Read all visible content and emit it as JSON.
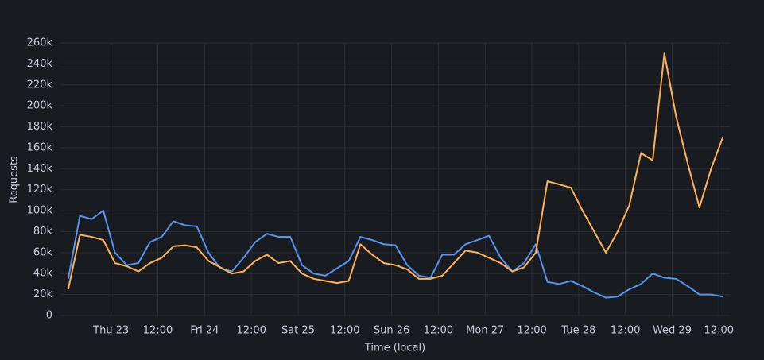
{
  "chart_data": {
    "type": "line",
    "y_label": "Requests",
    "x_label": "Time (local)",
    "x": [
      -11,
      -8,
      -5,
      -2,
      1,
      4,
      7,
      10,
      13,
      16,
      19,
      22,
      25,
      28,
      31,
      34,
      37,
      40,
      43,
      46,
      49,
      52,
      55,
      58,
      61,
      64,
      67,
      70,
      73,
      76,
      79,
      82,
      85,
      88,
      91,
      94,
      97,
      100,
      103,
      106,
      109,
      112,
      115,
      118,
      121,
      124,
      127,
      130,
      133,
      136,
      139,
      142,
      145,
      148,
      151,
      154,
      157
    ],
    "series": [
      {
        "color": "#5794f2",
        "values": [
          35000,
          95000,
          92000,
          100000,
          60000,
          48000,
          50000,
          70000,
          75000,
          90000,
          86000,
          85000,
          60000,
          45000,
          42000,
          55000,
          70000,
          78000,
          75000,
          75000,
          48000,
          40000,
          38000,
          45000,
          52000,
          75000,
          72000,
          68000,
          67000,
          48000,
          38000,
          36000,
          58000,
          58000,
          68000,
          72000,
          76000,
          55000,
          42000,
          50000,
          68000,
          32000,
          30000,
          33000,
          28000,
          22000,
          17000,
          18000,
          25000,
          30000,
          40000,
          36000,
          35000,
          28000,
          20000,
          20000,
          18000
        ]
      },
      {
        "color": "#ffb357",
        "values": [
          25000,
          77000,
          75000,
          72000,
          50000,
          47000,
          42000,
          50000,
          55000,
          66000,
          67000,
          65000,
          52000,
          46000,
          40000,
          42000,
          52000,
          58000,
          50000,
          52000,
          40000,
          35000,
          33000,
          31000,
          33000,
          68000,
          58000,
          50000,
          48000,
          44000,
          35000,
          35000,
          38000,
          50000,
          62000,
          60000,
          55000,
          50000,
          42000,
          46000,
          60000,
          128000,
          125000,
          122000,
          100000,
          80000,
          60000,
          80000,
          105000,
          155000,
          148000,
          250000,
          190000,
          145000,
          103000,
          140000,
          170000
        ]
      }
    ],
    "xlim": [
      -13,
      159
    ],
    "xticks": [
      {
        "value": 0,
        "label": "Thu 23"
      },
      {
        "value": 12,
        "label": "12:00"
      },
      {
        "value": 24,
        "label": "Fri 24"
      },
      {
        "value": 36,
        "label": "12:00"
      },
      {
        "value": 48,
        "label": "Sat 25"
      },
      {
        "value": 60,
        "label": "12:00"
      },
      {
        "value": 72,
        "label": "Sun 26"
      },
      {
        "value": 84,
        "label": "12:00"
      },
      {
        "value": 96,
        "label": "Mon 27"
      },
      {
        "value": 108,
        "label": "12:00"
      },
      {
        "value": 120,
        "label": "Tue 28"
      },
      {
        "value": 132,
        "label": "12:00"
      },
      {
        "value": 144,
        "label": "Wed 29"
      },
      {
        "value": 156,
        "label": "12:00"
      }
    ],
    "ylim": [
      0,
      260000
    ],
    "yticks": [
      0,
      {
        "value": 20000,
        "label": "20k"
      },
      {
        "value": 40000,
        "label": "40k"
      },
      {
        "value": 60000,
        "label": "60k"
      },
      {
        "value": 80000,
        "label": "80k"
      },
      {
        "value": 100000,
        "label": "100k"
      },
      {
        "value": 120000,
        "label": "120k"
      },
      {
        "value": 140000,
        "label": "140k"
      },
      {
        "value": 160000,
        "label": "160k"
      },
      {
        "value": 180000,
        "label": "180k"
      },
      {
        "value": 200000,
        "label": "200k"
      },
      {
        "value": 220000,
        "label": "220k"
      },
      {
        "value": 240000,
        "label": "240k"
      },
      {
        "value": 260000,
        "label": "260k"
      }
    ],
    "grid": true
  }
}
